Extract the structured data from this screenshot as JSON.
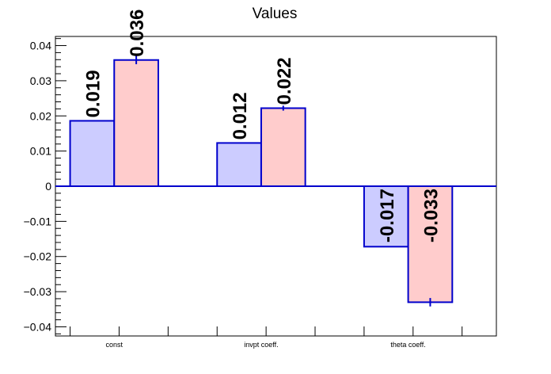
{
  "chart_data": {
    "type": "bar",
    "title": "Values",
    "xlabel": "",
    "ylabel": "",
    "categories": [
      "const",
      "invpt coeff.",
      "theta coeff."
    ],
    "series": [
      {
        "values": [
          0.0186,
          0.0123,
          -0.0172
        ],
        "errors": [
          0.0,
          0.0,
          0.0
        ],
        "labels": [
          "0.019",
          "0.012",
          "-0.017"
        ],
        "fill": "#ccccff",
        "stroke": "#0000cc"
      },
      {
        "values": [
          0.0359,
          0.0222,
          -0.033
        ],
        "errors": [
          0.0012,
          0.0007,
          0.0012
        ],
        "labels": [
          "0.036",
          "0.022",
          "-0.033"
        ],
        "fill": "#ffcccc",
        "stroke": "#0000cc"
      }
    ],
    "ylim": [
      -0.0426,
      0.0426
    ],
    "yticks": [
      -0.04,
      -0.03,
      -0.02,
      -0.01,
      0,
      0.01,
      0.02,
      0.03,
      0.04
    ],
    "ytick_labels": [
      "−0.04",
      "−0.03",
      "−0.02",
      "−0.01",
      "0",
      "0.01",
      "0.02",
      "0.03",
      "0.04"
    ],
    "grid": false,
    "legend": "none"
  }
}
